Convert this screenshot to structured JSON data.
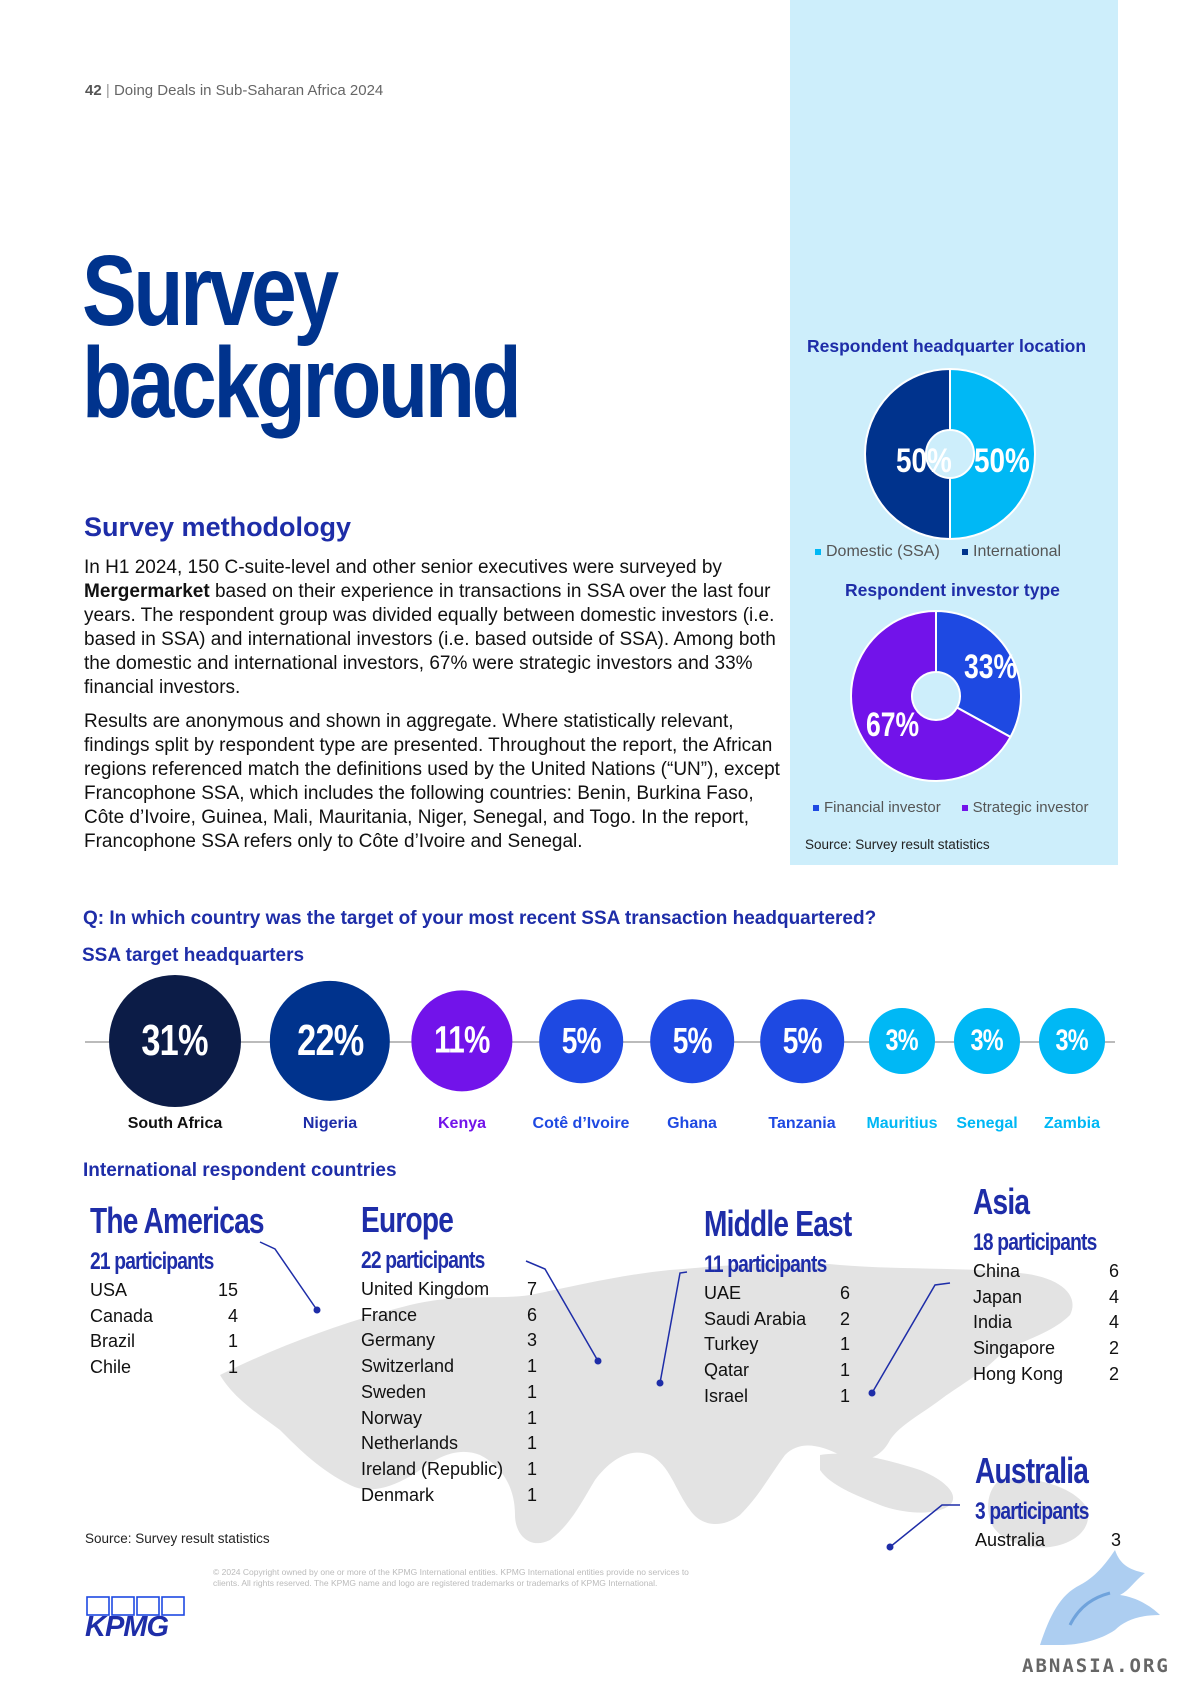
{
  "header": {
    "page_number": "42",
    "separator": "|",
    "doc_title": "Doing Deals in Sub-Saharan Africa 2024"
  },
  "title": {
    "line1": "Survey",
    "line2": "background"
  },
  "methodology": {
    "heading": "Survey methodology",
    "p1_a": "In H1 2024, 150 C-suite-level and other senior executives were surveyed by ",
    "p1_bold": "Mergermarket",
    "p1_b": " based on their experience in transactions in SSA over the last four years. The respondent group was divided equally between domestic investors (i.e. based in SSA) and international investors (i.e. based outside of SSA). Among both the domestic and international investors, 67% were strategic investors and 33% financial investors.",
    "p2": "Results are anonymous and shown in aggregate. Where statistically relevant, findings split by respondent type are presented. Throughout the report, the African regions referenced match the definitions used by the United Nations (“UN”), except Francophone SSA, which includes the following countries: Benin, Burkina Faso, Côte d’Ivoire, Guinea, Mali, Mauritania, Niger, Senegal, and Togo. In the report, Francophone SSA refers only to Côte d’Ivoire and Senegal."
  },
  "colors": {
    "dark_navy": "#0C1C47",
    "navy": "#00338D",
    "purple": "#7213EA",
    "blue": "#1E49E2",
    "cyan": "#00B8F5",
    "heading_blue": "#1E2DA8",
    "panel_bg": "#CDEEFB"
  },
  "chart_data": [
    {
      "type": "pie",
      "title": "Respondent headquarter location",
      "categories": [
        "Domestic (SSA)",
        "International"
      ],
      "values": [
        50,
        50
      ],
      "labels": [
        "50%",
        "50%"
      ],
      "legend": "bottom"
    },
    {
      "type": "pie",
      "title": "Respondent investor type",
      "categories": [
        "Financial investor",
        "Strategic investor"
      ],
      "values": [
        33,
        67
      ],
      "labels": [
        "33%",
        "67%"
      ],
      "legend": "bottom"
    },
    {
      "type": "bubble",
      "title": "SSA target headquarters",
      "categories": [
        "South Africa",
        "Nigeria",
        "Kenya",
        "Cotê d’Ivoire",
        "Ghana",
        "Tanzania",
        "Mauritius",
        "Senegal",
        "Zambia"
      ],
      "values": [
        31,
        22,
        11,
        5,
        5,
        5,
        3,
        3,
        3
      ],
      "labels": [
        "31%",
        "22%",
        "11%",
        "5%",
        "5%",
        "5%",
        "3%",
        "3%",
        "3%"
      ]
    }
  ],
  "panel": {
    "source": "Source: Survey result statistics"
  },
  "question": "Q: In which country was the target of your most recent SSA transaction headquartered?",
  "target_heading": "SSA target headquarters",
  "intl_heading": "International respondent countries",
  "regions": {
    "americas": {
      "title": "The Americas",
      "participants": "21 participants",
      "rows": [
        [
          "USA",
          "15"
        ],
        [
          "Canada",
          "4"
        ],
        [
          "Brazil",
          "1"
        ],
        [
          "Chile",
          "1"
        ]
      ]
    },
    "europe": {
      "title": "Europe",
      "participants": "22 participants",
      "rows": [
        [
          "United Kingdom",
          "7"
        ],
        [
          "France",
          "6"
        ],
        [
          "Germany",
          "3"
        ],
        [
          "Switzerland",
          "1"
        ],
        [
          "Sweden",
          "1"
        ],
        [
          "Norway",
          "1"
        ],
        [
          "Netherlands",
          "1"
        ],
        [
          "Ireland (Republic)",
          "1"
        ],
        [
          "Denmark",
          "1"
        ]
      ]
    },
    "middle_east": {
      "title": "Middle East",
      "participants": "11 participants",
      "rows": [
        [
          "UAE",
          "6"
        ],
        [
          "Saudi Arabia",
          "2"
        ],
        [
          "Turkey",
          "1"
        ],
        [
          "Qatar",
          "1"
        ],
        [
          "Israel",
          "1"
        ]
      ]
    },
    "asia": {
      "title": "Asia",
      "participants": "18 participants",
      "rows": [
        [
          "China",
          "6"
        ],
        [
          "Japan",
          "4"
        ],
        [
          "India",
          "4"
        ],
        [
          "Singapore",
          "2"
        ],
        [
          "Hong Kong",
          "2"
        ]
      ]
    },
    "australia": {
      "title": "Australia",
      "participants": "3 participants",
      "rows": [
        [
          "Australia",
          "3"
        ]
      ]
    }
  },
  "bottom_source": "Source: Survey result statistics",
  "footer": {
    "logo": "KPMG",
    "copyright": "© 2024 Copyright owned by one or more of the KPMG International entities. KPMG International entities provide no services to clients. All rights reserved. The KPMG name and logo are registered trademarks or trademarks of KPMG International.",
    "watermark": "ABNASIA.ORG"
  }
}
